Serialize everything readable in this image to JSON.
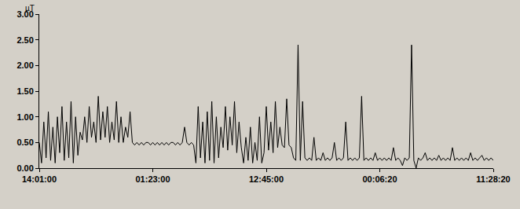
{
  "chart_data": {
    "type": "line",
    "y_label": "µT",
    "color": "#000000",
    "grid": false,
    "ylim": [
      0,
      3
    ],
    "yticks": [
      {
        "value": 0,
        "label": "0.00"
      },
      {
        "value": 0.5,
        "label": "0.50"
      },
      {
        "value": 1,
        "label": "1.00"
      },
      {
        "value": 1.5,
        "label": "1.50"
      },
      {
        "value": 2,
        "label": "2.00"
      },
      {
        "value": 2.5,
        "label": "2.50"
      },
      {
        "value": 3,
        "label": "3.00"
      }
    ],
    "categories": [
      "14:01:00",
      null,
      null,
      null,
      null,
      null,
      null,
      null,
      null,
      null,
      null,
      null,
      null,
      null,
      null,
      null,
      null,
      null,
      null,
      null,
      null,
      null,
      null,
      null,
      null,
      null,
      null,
      null,
      null,
      null,
      null,
      null,
      null,
      null,
      null,
      null,
      null,
      null,
      null,
      null,
      null,
      null,
      null,
      null,
      null,
      null,
      null,
      null,
      null,
      null,
      "01:23:00",
      null,
      null,
      null,
      null,
      null,
      null,
      null,
      null,
      null,
      null,
      null,
      null,
      null,
      null,
      null,
      null,
      null,
      null,
      null,
      null,
      null,
      null,
      null,
      null,
      null,
      null,
      null,
      null,
      null,
      null,
      null,
      null,
      null,
      null,
      null,
      null,
      null,
      null,
      null,
      null,
      null,
      null,
      null,
      null,
      null,
      null,
      null,
      null,
      null,
      "12:45:00",
      null,
      null,
      null,
      null,
      null,
      null,
      null,
      null,
      null,
      null,
      null,
      null,
      null,
      null,
      null,
      null,
      null,
      null,
      null,
      null,
      null,
      null,
      null,
      null,
      null,
      null,
      null,
      null,
      null,
      null,
      null,
      null,
      null,
      null,
      null,
      null,
      null,
      null,
      null,
      null,
      null,
      null,
      null,
      null,
      null,
      null,
      null,
      null,
      null,
      "00:06:20",
      null,
      null,
      null,
      null,
      null,
      null,
      null,
      null,
      null,
      null,
      null,
      null,
      null,
      null,
      null,
      null,
      null,
      null,
      null,
      null,
      null,
      null,
      null,
      null,
      null,
      null,
      null,
      null,
      null,
      null,
      null,
      null,
      null,
      null,
      null,
      null,
      null,
      null,
      null,
      null,
      null,
      null,
      null,
      null,
      null,
      null,
      null,
      null,
      null,
      "11:28:20"
    ],
    "values": [
      0.5,
      0.1,
      0.9,
      0.2,
      1.1,
      0.15,
      0.8,
      0.1,
      1.0,
      0.3,
      1.2,
      0.15,
      0.9,
      0.2,
      1.3,
      0.1,
      1.0,
      0.25,
      0.7,
      0.55,
      1.0,
      0.5,
      1.2,
      0.6,
      0.9,
      0.5,
      1.4,
      0.55,
      1.1,
      0.6,
      1.2,
      0.5,
      0.9,
      0.55,
      1.3,
      0.5,
      1.0,
      0.5,
      0.8,
      0.6,
      1.1,
      0.5,
      0.45,
      0.5,
      0.45,
      0.5,
      0.45,
      0.5,
      0.5,
      0.45,
      0.5,
      0.45,
      0.5,
      0.45,
      0.5,
      0.45,
      0.5,
      0.45,
      0.5,
      0.5,
      0.45,
      0.5,
      0.45,
      0.5,
      0.8,
      0.5,
      0.45,
      0.5,
      0.45,
      0.1,
      1.2,
      0.2,
      0.9,
      0.1,
      1.1,
      0.15,
      1.3,
      0.1,
      1.0,
      0.2,
      0.8,
      0.4,
      1.2,
      0.35,
      1.0,
      0.45,
      1.3,
      0.3,
      0.9,
      0.4,
      0.1,
      0.6,
      0.15,
      0.8,
      0.1,
      0.5,
      0.15,
      1.0,
      0.1,
      0.3,
      1.2,
      0.35,
      0.9,
      0.3,
      1.3,
      0.4,
      0.8,
      0.45,
      0.4,
      1.35,
      0.45,
      0.4,
      0.2,
      0.15,
      2.4,
      0.15,
      1.3,
      0.2,
      0.15,
      0.2,
      0.15,
      0.6,
      0.15,
      0.2,
      0.15,
      0.3,
      0.15,
      0.2,
      0.15,
      0.2,
      0.5,
      0.15,
      0.2,
      0.15,
      0.2,
      0.9,
      0.15,
      0.2,
      0.15,
      0.2,
      0.15,
      0.2,
      1.4,
      0.15,
      0.2,
      0.15,
      0.2,
      0.15,
      0.3,
      0.15,
      0.2,
      0.15,
      0.2,
      0.15,
      0.2,
      0.15,
      0.4,
      0.15,
      0.2,
      0.15,
      0.05,
      0.2,
      0.15,
      0.2,
      2.4,
      0.15,
      0.0,
      0.2,
      0.15,
      0.2,
      0.3,
      0.15,
      0.2,
      0.15,
      0.2,
      0.15,
      0.25,
      0.15,
      0.2,
      0.15,
      0.2,
      0.15,
      0.4,
      0.15,
      0.2,
      0.15,
      0.2,
      0.15,
      0.2,
      0.15,
      0.3,
      0.15,
      0.2,
      0.15,
      0.2,
      0.25,
      0.15,
      0.2,
      0.15,
      0.2,
      0.15
    ]
  }
}
